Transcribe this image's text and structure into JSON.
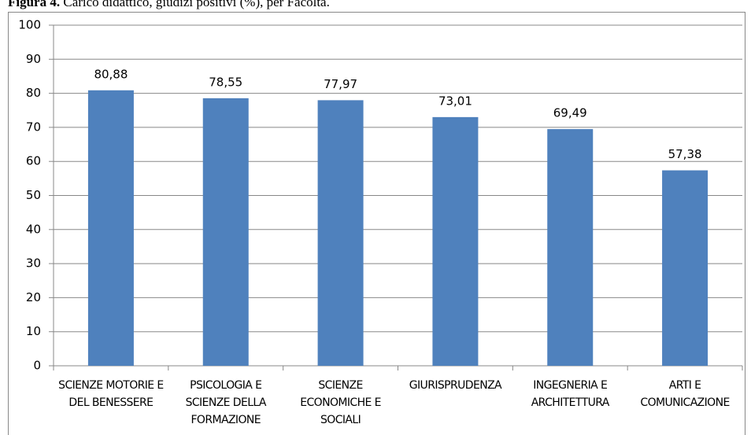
{
  "chart_data": {
    "type": "bar",
    "title_prefix": "Figura 4.",
    "title": "Carico didattico, giudizi positivi (%), per Facoltà.",
    "categories": [
      "SCIENZE MOTORIE E DEL BENESSERE",
      "PSICOLOGIA E SCIENZE DELLA FORMAZIONE",
      "SCIENZE ECONOMICHE E SOCIALI",
      "GIURISPRUDENZA",
      "INGEGNERIA E ARCHITETTURA",
      "ARTI E COMUNICAZIONE"
    ],
    "values": [
      80.88,
      78.55,
      77.97,
      73.01,
      69.49,
      57.38
    ],
    "value_labels": [
      "80,88",
      "78,55",
      "77,97",
      "73,01",
      "69,49",
      "57,38"
    ],
    "color": "#4f81bd",
    "ylim": [
      0,
      100
    ],
    "yticks": [
      0,
      10,
      20,
      30,
      40,
      50,
      60,
      70,
      80,
      90,
      100
    ],
    "grid": true
  }
}
